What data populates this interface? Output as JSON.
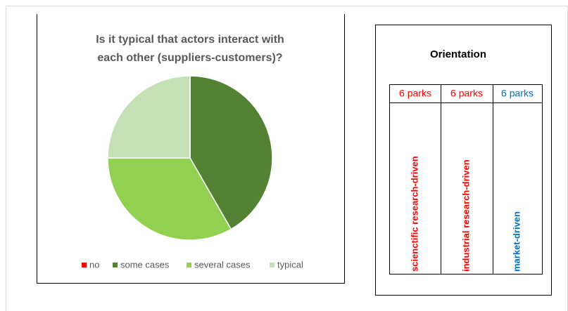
{
  "chart_data": {
    "type": "pie",
    "title": [
      "Is it typical that actors interact with",
      "each other (suppliers-customers)?"
    ],
    "categories": [
      "no",
      "some cases",
      "several cases",
      "typical"
    ],
    "values": [
      0,
      41.7,
      33.3,
      25
    ],
    "colors": [
      "#ff0000",
      "#548235",
      "#92d050",
      "#c5e0b4"
    ],
    "legend": "bottom"
  },
  "orientation": {
    "title": "Orientation",
    "columns": [
      {
        "count": "6 parks",
        "label": "scienctific research-driven",
        "color": "#ff0000"
      },
      {
        "count": "6 parks",
        "label": "industrial research-driven",
        "color": "#ff0000"
      },
      {
        "count": "6 parks",
        "label": "market-driven",
        "color": "#0070c0"
      }
    ]
  }
}
